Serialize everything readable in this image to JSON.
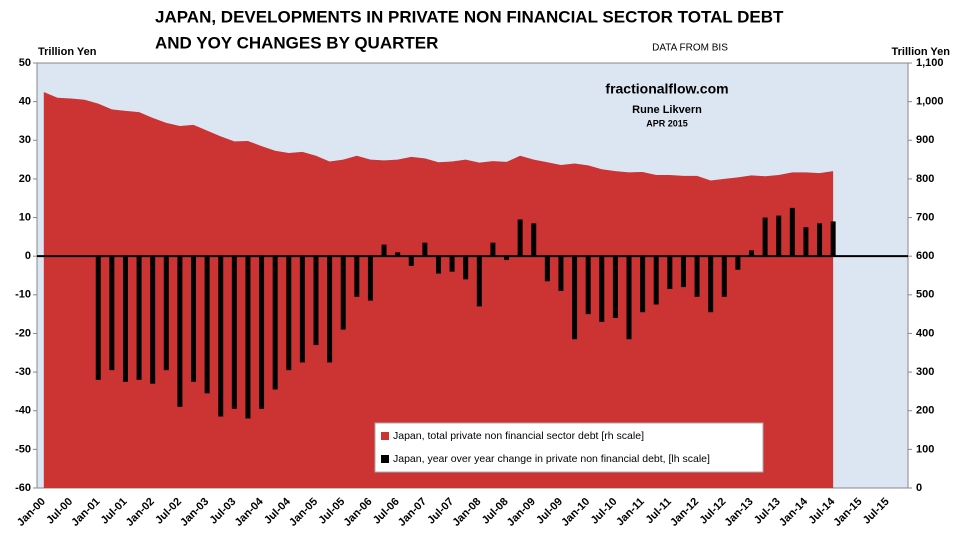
{
  "chart_data": {
    "type": "bar_area",
    "title": "JAPAN, DEVELOPMENTS IN PRIVATE NON FINANCIAL SECTOR TOTAL DEBT",
    "title_2": "AND YOY CHANGES BY QUARTER",
    "ylabel": "Trillion Yen",
    "y2label": "Trillion Yen",
    "source": "DATA FROM BIS",
    "watermark": [
      "fractionalflow.com",
      "Rune Likvern",
      "APR 2015"
    ],
    "categories": [
      "Jan-00",
      null,
      "Jul-00",
      null,
      "Jan-01",
      null,
      "Jul-01",
      null,
      "Jan-02",
      null,
      "Jul-02",
      null,
      "Jan-03",
      null,
      "Jul-03",
      null,
      "Jan-04",
      null,
      "Jul-04",
      null,
      "Jan-05",
      null,
      "Jul-05",
      null,
      "Jan-06",
      null,
      "Jul-06",
      null,
      "Jan-07",
      null,
      "Jul-07",
      null,
      "Jan-08",
      null,
      "Jul-08",
      null,
      "Jan-09",
      null,
      "Jul-09",
      null,
      "Jan-10",
      null,
      "Jul-10",
      null,
      "Jan-11",
      null,
      "Jul-11",
      null,
      "Jan-12",
      null,
      "Jul-12",
      null,
      "Jan-13",
      null,
      "Jul-13",
      null,
      "Jan-14",
      null,
      "Jul-14",
      null,
      "Jan-15",
      null,
      "Jul-15",
      null
    ],
    "series": [
      {
        "name": "Japan, total private non financial sector debt [rh scale]",
        "color": "#cc3333",
        "axis": "y2",
        "kind": "area",
        "values": [
          1025,
          1010,
          1008,
          1005,
          995,
          980,
          976,
          973,
          958,
          945,
          937,
          940,
          925,
          910,
          897,
          898,
          885,
          873,
          867,
          870,
          860,
          845,
          850,
          860,
          850,
          848,
          850,
          857,
          853,
          843,
          845,
          850,
          842,
          846,
          844,
          860,
          850,
          843,
          836,
          840,
          835,
          825,
          820,
          817,
          818,
          810,
          810,
          808,
          808,
          796,
          800,
          804,
          809,
          807,
          810,
          817,
          817,
          815,
          820,
          null,
          null,
          null,
          null,
          null
        ]
      },
      {
        "name": "Japan, year over year change in private non financial debt, [lh scale]",
        "color": "#000000",
        "axis": "y",
        "kind": "bar",
        "values": [
          null,
          null,
          null,
          null,
          -32,
          -29.5,
          -32.5,
          -32,
          -33,
          -29.5,
          -39,
          -32.5,
          -35.5,
          -41.5,
          -39.5,
          -42,
          -39.5,
          -34.5,
          -29.5,
          -27.5,
          -23,
          -27.5,
          -19,
          -10.5,
          -11.5,
          3,
          1,
          -2.5,
          3.5,
          -4.5,
          -4,
          -6,
          -13,
          3.5,
          -1,
          9.5,
          8.5,
          -6.5,
          -9,
          -21.5,
          -15,
          -17,
          -16,
          -21.5,
          -14.5,
          -12.5,
          -8.5,
          -8,
          -10.5,
          -14.5,
          -10.5,
          -3.5,
          1.5,
          10,
          10.5,
          12.5,
          7.5,
          8.5,
          9,
          null,
          null,
          null,
          null,
          null
        ]
      }
    ],
    "ylim": [
      -60,
      50
    ],
    "yticks": [
      50,
      40,
      30,
      20,
      10,
      0,
      -10,
      -20,
      -30,
      -40,
      -50,
      -60
    ],
    "y2lim": [
      0,
      1100
    ],
    "y2ticks": [
      {
        "value": 1100,
        "label": "1,100"
      },
      {
        "value": 1000,
        "label": "1,000"
      },
      900,
      800,
      700,
      600,
      500,
      400,
      300,
      200,
      100,
      0
    ],
    "negative_tick_color": "#e00000",
    "plot_background": "#dce6f2",
    "legend": "lower center"
  }
}
